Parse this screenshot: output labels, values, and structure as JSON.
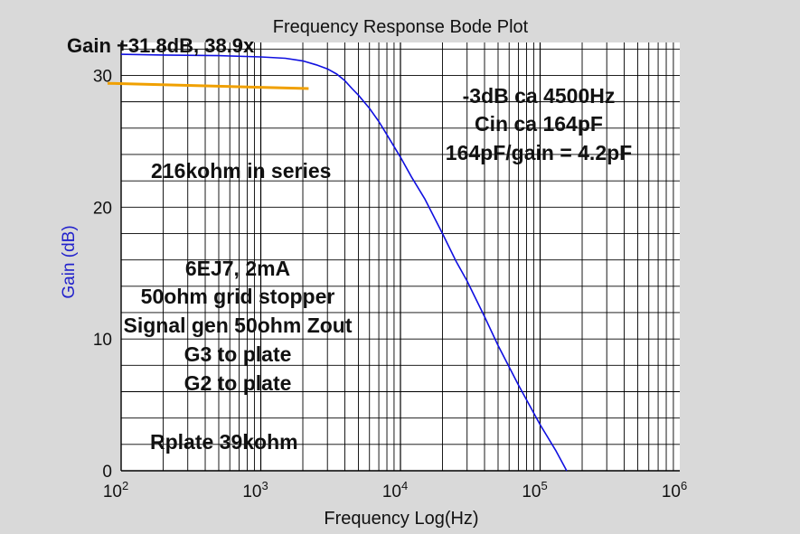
{
  "chart_data": {
    "type": "line",
    "title": "Frequency Response Bode Plot",
    "xlabel": "Frequency Log(Hz)",
    "ylabel": "Gain (dB)",
    "x_scale": "log",
    "xlim": [
      100,
      1000000
    ],
    "ylim": [
      0,
      32.5
    ],
    "x_ticks": [
      100,
      1000,
      10000,
      100000,
      1000000
    ],
    "x_tick_labels": [
      {
        "base": "10",
        "exp": "2"
      },
      {
        "base": "10",
        "exp": "3"
      },
      {
        "base": "10",
        "exp": "4"
      },
      {
        "base": "10",
        "exp": "5"
      },
      {
        "base": "10",
        "exp": "6"
      }
    ],
    "y_ticks": [
      0,
      10,
      20,
      30
    ],
    "y_tick_labels": [
      "0",
      "10",
      "20",
      "30"
    ],
    "grid": true,
    "series": [
      {
        "color": "#1010e0",
        "x": [
          100,
          200,
          500,
          1000,
          1500,
          2000,
          2500,
          3000,
          3500,
          4000,
          4500,
          5000,
          6000,
          7000,
          8000,
          10000,
          12000,
          15000,
          20000,
          25000,
          30000,
          40000,
          50000,
          70000,
          100000,
          130000,
          155000
        ],
        "y": [
          31.6,
          31.55,
          31.5,
          31.4,
          31.3,
          31.1,
          30.8,
          30.5,
          30.1,
          29.6,
          29.0,
          28.5,
          27.5,
          26.5,
          25.5,
          23.8,
          22.3,
          20.6,
          18.0,
          15.9,
          14.4,
          11.7,
          9.5,
          6.5,
          3.5,
          1.5,
          0.0
        ]
      },
      {
        "color": "#f0a000",
        "x": [
          80,
          2200
        ],
        "y": [
          29.4,
          29.0
        ]
      }
    ],
    "annotations": [
      "Gain +31.8dB, 38.9x",
      "-3dB ca 4500Hz",
      "Cin ca 164pF",
      "164pF/gain = 4.2pF",
      "216kohm in series",
      "6EJ7, 2mA",
      "50ohm grid stopper",
      "Signal gen 50ohm Zout",
      "G3 to plate",
      "G2 to plate",
      "Rplate 39kohm"
    ]
  },
  "colors": {
    "background": "#d9d9d9",
    "plot_area": "#ffffff",
    "grid": "#000000",
    "ylabel": "#2222cc"
  }
}
